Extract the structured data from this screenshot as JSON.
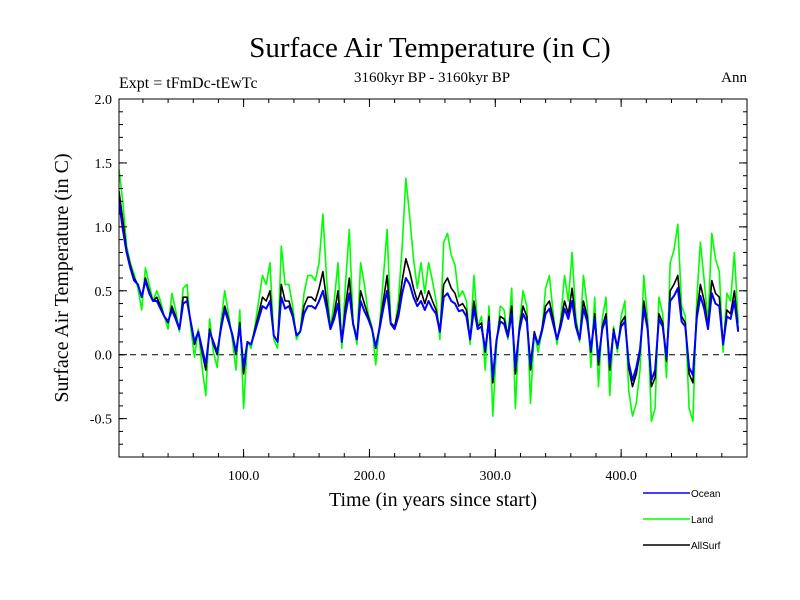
{
  "chart_data": {
    "type": "line",
    "title": "Surface Air Temperature (in C)",
    "subtitle": "3160kyr BP - 3160kyr BP",
    "left_label": "Expt = tFmDc-tEwTc",
    "right_label": "Ann",
    "xlabel": "Time (in years since start)",
    "ylabel": "Surface Air Temperature (in C)",
    "xlim": [
      1,
      500
    ],
    "ylim": [
      -0.8,
      2.0
    ],
    "x_ticks": [
      100,
      200,
      300,
      400
    ],
    "x_tick_labels": [
      "100.0",
      "200.0",
      "300.0",
      "400.0"
    ],
    "y_ticks": [
      -0.5,
      0.0,
      0.5,
      1.0,
      1.5,
      2.0
    ],
    "y_tick_labels": [
      "-0.5",
      "0.0",
      "0.5",
      "1.0",
      "1.5",
      "2.0"
    ],
    "reference_line": 0.0,
    "legend_position": "bottom-right",
    "series": [
      {
        "name": "Land",
        "color": "#00ff00",
        "x_start": 1,
        "x_step": 3,
        "values": [
          1.45,
          1.2,
          0.85,
          0.72,
          0.63,
          0.52,
          0.35,
          0.68,
          0.55,
          0.42,
          0.5,
          0.42,
          0.3,
          0.2,
          0.48,
          0.35,
          0.18,
          0.52,
          0.55,
          0.22,
          -0.02,
          0.2,
          -0.1,
          -0.32,
          0.28,
          0.02,
          -0.1,
          0.25,
          0.5,
          0.32,
          0.12,
          -0.12,
          0.35,
          -0.42,
          0.1,
          0.05,
          0.22,
          0.42,
          0.62,
          0.55,
          0.72,
          0.12,
          0.05,
          0.85,
          0.55,
          0.55,
          0.38,
          0.12,
          0.18,
          0.48,
          0.62,
          0.62,
          0.58,
          0.72,
          1.1,
          0.58,
          0.2,
          0.42,
          0.72,
          0.05,
          0.55,
          0.98,
          0.25,
          0.08,
          0.72,
          0.55,
          0.32,
          0.22,
          -0.08,
          0.22,
          0.6,
          0.98,
          0.25,
          0.2,
          0.42,
          0.85,
          1.38,
          1.08,
          0.75,
          0.52,
          0.72,
          0.48,
          0.72,
          0.58,
          0.42,
          0.12,
          0.88,
          0.95,
          0.78,
          0.7,
          0.45,
          0.5,
          0.42,
          0.08,
          0.62,
          0.22,
          0.3,
          -0.12,
          0.38,
          -0.48,
          0.08,
          0.38,
          0.35,
          0.12,
          0.52,
          -0.42,
          0.22,
          0.5,
          0.38,
          -0.38,
          0.18,
          0.02,
          0.18,
          0.52,
          0.62,
          0.32,
          0.08,
          0.28,
          0.62,
          0.42,
          0.8,
          0.3,
          0.1,
          0.62,
          0.38,
          -0.1,
          0.45,
          -0.25,
          0.28,
          0.45,
          -0.32,
          0.22,
          0.02,
          0.3,
          0.42,
          -0.28,
          -0.48,
          -0.38,
          -0.12,
          0.62,
          0.28,
          -0.52,
          -0.42,
          0.45,
          0.32,
          -0.18,
          0.72,
          0.82,
          1.02,
          0.38,
          0.3,
          -0.42,
          -0.52,
          0.42,
          0.88,
          0.58,
          0.25,
          0.95,
          0.75,
          0.65,
          0.02,
          0.48,
          0.42,
          0.8,
          0.25
        ]
      },
      {
        "name": "AllSurf",
        "color": "#000000",
        "x_start": 1,
        "x_step": 3,
        "values": [
          1.28,
          1.05,
          0.82,
          0.7,
          0.6,
          0.55,
          0.45,
          0.6,
          0.5,
          0.42,
          0.45,
          0.38,
          0.3,
          0.25,
          0.38,
          0.3,
          0.2,
          0.45,
          0.45,
          0.25,
          0.08,
          0.18,
          0.02,
          -0.12,
          0.2,
          0.08,
          0.0,
          0.22,
          0.38,
          0.28,
          0.15,
          0.0,
          0.25,
          -0.15,
          0.1,
          0.08,
          0.2,
          0.32,
          0.45,
          0.42,
          0.5,
          0.15,
          0.1,
          0.55,
          0.42,
          0.42,
          0.32,
          0.15,
          0.18,
          0.38,
          0.45,
          0.45,
          0.42,
          0.52,
          0.65,
          0.42,
          0.2,
          0.32,
          0.5,
          0.1,
          0.38,
          0.6,
          0.25,
          0.12,
          0.5,
          0.4,
          0.3,
          0.2,
          0.05,
          0.22,
          0.42,
          0.62,
          0.25,
          0.22,
          0.35,
          0.58,
          0.75,
          0.65,
          0.52,
          0.42,
          0.5,
          0.4,
          0.5,
          0.42,
          0.35,
          0.18,
          0.55,
          0.6,
          0.52,
          0.48,
          0.38,
          0.4,
          0.35,
          0.12,
          0.42,
          0.22,
          0.25,
          0.02,
          0.3,
          -0.22,
          0.12,
          0.3,
          0.28,
          0.15,
          0.38,
          -0.15,
          0.2,
          0.38,
          0.3,
          -0.12,
          0.18,
          0.08,
          0.2,
          0.38,
          0.42,
          0.28,
          0.12,
          0.25,
          0.42,
          0.32,
          0.52,
          0.25,
          0.12,
          0.42,
          0.3,
          0.02,
          0.32,
          -0.08,
          0.22,
          0.32,
          -0.12,
          0.2,
          0.05,
          0.25,
          0.3,
          -0.1,
          -0.25,
          -0.15,
          0.02,
          0.42,
          0.22,
          -0.25,
          -0.18,
          0.32,
          0.25,
          -0.05,
          0.5,
          0.55,
          0.62,
          0.3,
          0.25,
          -0.15,
          -0.22,
          0.32,
          0.55,
          0.42,
          0.22,
          0.58,
          0.48,
          0.45,
          0.08,
          0.35,
          0.32,
          0.5,
          0.2
        ]
      },
      {
        "name": "Ocean",
        "color": "#0000ff",
        "x_start": 1,
        "x_step": 3,
        "values": [
          1.2,
          0.98,
          0.8,
          0.68,
          0.58,
          0.55,
          0.45,
          0.58,
          0.48,
          0.42,
          0.42,
          0.36,
          0.3,
          0.26,
          0.35,
          0.28,
          0.2,
          0.4,
          0.42,
          0.26,
          0.1,
          0.18,
          0.05,
          -0.08,
          0.18,
          0.1,
          0.02,
          0.2,
          0.35,
          0.26,
          0.16,
          0.02,
          0.22,
          -0.1,
          0.1,
          0.08,
          0.18,
          0.28,
          0.38,
          0.36,
          0.42,
          0.15,
          0.1,
          0.45,
          0.36,
          0.38,
          0.3,
          0.15,
          0.18,
          0.32,
          0.38,
          0.38,
          0.36,
          0.42,
          0.5,
          0.36,
          0.2,
          0.28,
          0.4,
          0.1,
          0.32,
          0.48,
          0.24,
          0.12,
          0.42,
          0.34,
          0.28,
          0.2,
          0.06,
          0.2,
          0.36,
          0.5,
          0.24,
          0.2,
          0.3,
          0.48,
          0.6,
          0.55,
          0.45,
          0.38,
          0.42,
          0.35,
          0.42,
          0.36,
          0.32,
          0.18,
          0.45,
          0.48,
          0.42,
          0.4,
          0.34,
          0.35,
          0.3,
          0.12,
          0.36,
          0.2,
          0.22,
          0.04,
          0.26,
          -0.18,
          0.12,
          0.26,
          0.24,
          0.14,
          0.32,
          -0.1,
          0.18,
          0.32,
          0.26,
          -0.08,
          0.16,
          0.08,
          0.18,
          0.32,
          0.36,
          0.24,
          0.12,
          0.22,
          0.36,
          0.28,
          0.42,
          0.22,
          0.12,
          0.36,
          0.26,
          0.04,
          0.28,
          -0.04,
          0.2,
          0.28,
          -0.08,
          0.18,
          0.06,
          0.22,
          0.26,
          -0.06,
          -0.2,
          -0.1,
          0.04,
          0.36,
          0.2,
          -0.2,
          -0.12,
          0.28,
          0.22,
          -0.02,
          0.42,
          0.46,
          0.52,
          0.26,
          0.22,
          -0.1,
          -0.16,
          0.28,
          0.46,
          0.36,
          0.2,
          0.48,
          0.4,
          0.38,
          0.08,
          0.3,
          0.28,
          0.42,
          0.18
        ]
      }
    ],
    "legend": [
      {
        "name": "Ocean",
        "color": "#0000ff"
      },
      {
        "name": "Land",
        "color": "#00ff00"
      },
      {
        "name": "AllSurf",
        "color": "#000000"
      }
    ]
  }
}
